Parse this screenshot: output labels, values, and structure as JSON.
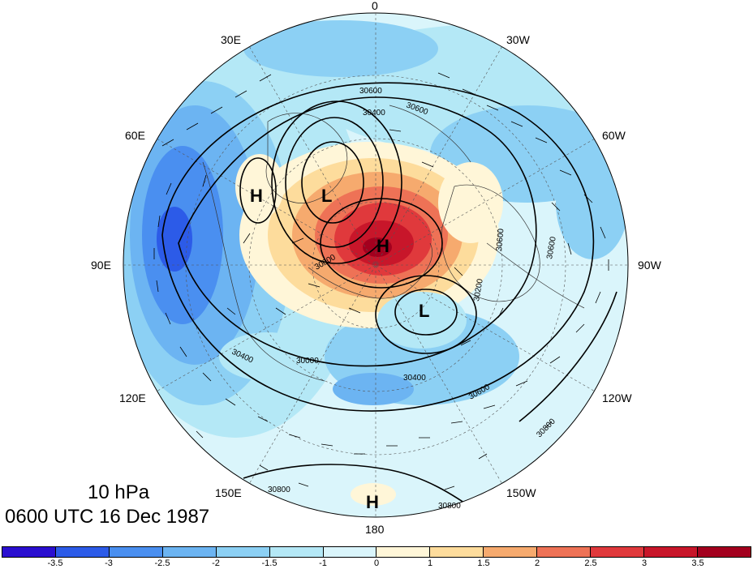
{
  "caption": {
    "level": "10 hPa",
    "timestamp": "0600 UTC 16 Dec 1987"
  },
  "longitude_labels": [
    "0",
    "30W",
    "60W",
    "90W",
    "120W",
    "150W",
    "180",
    "150E",
    "120E",
    "90E",
    "60E",
    "30E"
  ],
  "contour_labels": [
    "30600",
    "30400",
    "30600",
    "30000",
    "30000",
    "30400",
    "30200",
    "30600",
    "30600",
    "30800",
    "30400",
    "30600",
    "30800",
    "30800"
  ],
  "centers": [
    {
      "label": "H",
      "type": "high"
    },
    {
      "label": "L",
      "type": "low"
    },
    {
      "label": "H",
      "type": "high"
    },
    {
      "label": "L",
      "type": "low"
    },
    {
      "label": "H",
      "type": "high"
    }
  ],
  "colorbar": {
    "tick_labels": [
      "-3.5",
      "-3",
      "-2.5",
      "-2",
      "-1.5",
      "-1",
      "0",
      "1",
      "1.5",
      "2",
      "2.5",
      "3",
      "3.5"
    ],
    "colors": [
      "#2a0fd0",
      "#2c5be8",
      "#4a8ff0",
      "#6cb4f2",
      "#8cd0f4",
      "#b4e8f6",
      "#daf5fb",
      "#fff6d8",
      "#fddc9c",
      "#f6aa6e",
      "#ee7256",
      "#e0393c",
      "#c8162a",
      "#a3001e"
    ]
  }
}
